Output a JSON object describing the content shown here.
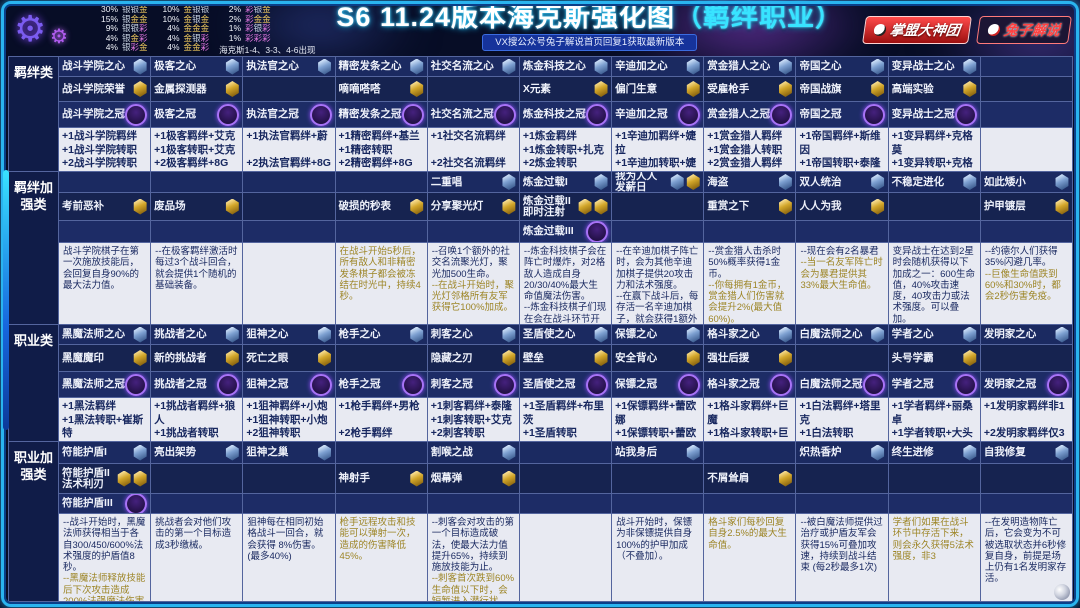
{
  "header": {
    "title": "S6 11.24版本海克斯强化图",
    "title_suffix": "（羁绊职业）",
    "subtitle": "VX搜公众号兔子解说首页回复1获取最新版本",
    "badge_left": "掌盟大神团",
    "badge_right": "兔子解说"
  },
  "legend": {
    "columns": [
      [
        [
          "30%",
          "银银金"
        ],
        [
          "15%",
          "银金金"
        ],
        [
          "9%",
          "银银彩"
        ],
        [
          "4%",
          "银金彩"
        ],
        [
          "4%",
          "银彩金"
        ]
      ],
      [
        [
          "10%",
          "金银银"
        ],
        [
          "10%",
          "金银金"
        ],
        [
          "4%",
          "金金金"
        ],
        [
          "4%",
          "金银彩"
        ],
        [
          "4%",
          "金金彩"
        ]
      ],
      [
        [
          "2%",
          "彩银金"
        ],
        [
          "2%",
          "彩金金"
        ],
        [
          "1%",
          "彩银彩"
        ],
        [
          "1%",
          "彩彩彩"
        ]
      ]
    ],
    "note": "海克斯1-4、3-3、4-6出现",
    "tier_colors": {
      "银": "#ccd7e6",
      "金": "#e9c45c",
      "彩": "#e077e0"
    }
  },
  "grid": {
    "groups": [
      {
        "label": "羁绊类",
        "rows": [
          {
            "kind": "name",
            "tier": "silver",
            "cells": [
              "战斗学院之心",
              "极客之心",
              "执法官之心",
              "精密发条之心",
              "社交名流之心",
              "炼金科技之心",
              "辛迪加之心",
              "赏金猎人之心",
              "帝国之心",
              "变异战士之心",
              null
            ]
          },
          {
            "kind": "name",
            "tier": "gold",
            "cells": [
              "战斗学院荣誉",
              "金属探测器",
              null,
              "嘀嘀嗒嗒",
              null,
              "X元素",
              "偏门生意",
              "受雇枪手",
              "帝国战旗",
              "高端实验",
              null
            ]
          },
          {
            "kind": "name",
            "tier": "prismatic",
            "cells": [
              "战斗学院之冠",
              "极客之冠",
              "执法官之冠",
              "精密发条之冠",
              "社交名流之冠",
              "炼金科技之冠",
              "辛迪加之冠",
              "赏金猎人之冠",
              "帝国之冠",
              "变异战士之冠",
              null
            ]
          },
          {
            "kind": "plus",
            "cells": [
              [
                "+1战斗学院羁绊",
                "+1战斗学院转职",
                "+2战斗学院转职"
              ],
              [
                "+1极客羁绊+艾克",
                "+1极客转职+艾克",
                "+2极客羁绊+8G"
              ],
              [
                "+1执法官羁绊+蔚",
                "",
                "+2执法官羁绊+8G"
              ],
              [
                "+1精密羁绊+基兰",
                "+1精密转职",
                "+2精密羁绊+8G"
              ],
              [
                "+1社交名流羁绊",
                "",
                "+2社交名流羁绊"
              ],
              [
                "+1炼金羁绊",
                "+1炼金转职+扎克",
                "+2炼金转职"
              ],
              [
                "+1辛迪加羁绊+婕拉",
                "+1辛迪加转职+婕拉",
                "+2辛迪加转职"
              ],
              [
                "+1赏金猎人羁绊",
                "+1赏金猎人转职",
                "+2赏金猎人羁绊"
              ],
              [
                "+1帝国羁绊+斯维因",
                "+1帝国转职+泰隆",
                "+2帝国转职"
              ],
              [
                "+1变异羁绊+克格莫",
                "+1变异转职+克格莫",
                "+2变异转职"
              ],
              null
            ]
          }
        ]
      },
      {
        "label": "羁绊加强类",
        "rows": [
          {
            "kind": "name",
            "tier": "silver",
            "cells": [
              null,
              null,
              null,
              null,
              "二重唱",
              "炼金过载I",
              {
                "lines": [
                  "我为人人",
                  "发薪日"
                ],
                "tiers": [
                  "silver",
                  "gold"
                ]
              },
              "海盗",
              "双人统治",
              "不稳定进化",
              "如此矮小"
            ]
          },
          {
            "kind": "name",
            "tier": "gold",
            "cells": [
              "考前恶补",
              "废品场",
              null,
              "破损的秒表",
              "分享聚光灯",
              {
                "lines": [
                  "炼金过载II",
                  "即时注射"
                ],
                "tiers": [
                  "gold",
                  "gold"
                ]
              },
              null,
              "重赏之下",
              "人人为我",
              null,
              "护甲镀层"
            ]
          },
          {
            "kind": "name",
            "tier": "prismatic",
            "cells": [
              null,
              null,
              null,
              null,
              null,
              "炼金过载III",
              null,
              null,
              null,
              null,
              null
            ]
          },
          {
            "kind": "desc",
            "cells": [
              [
                {
                  "t": "战斗学院棋子在第一次施放技能后，会回复自身90%的最大法力值。",
                  "g": false
                }
              ],
              [
                {
                  "t": "--在极客羁绊激活时每过3个战斗回合，就会提供1个随机的基础装备。",
                  "g": false
                }
              ],
              null,
              [
                {
                  "t": "在战斗开始5秒后，所有敌人和非精密发条棋子都会被冻结在时光中，持续4秒。",
                  "g": true
                }
              ],
              [
                {
                  "t": "--召唤1个额外的社交名流聚光灯，聚光加500生命。",
                  "g": false
                },
                {
                  "t": "--在战斗开始时，聚光灯邻格所有友军获得它100%加成。",
                  "g": true
                }
              ],
              [
                {
                  "t": "--炼金科技棋子会在阵亡时爆炸，对2格敌人造成自身20/30/40%最大生命值魔法伤害。",
                  "g": false
                },
                {
                  "t": "--炼金科技棋子们现在会在战斗环节开始时额外触发他们的羁绊加成",
                  "g": false
                }
              ],
              [
                {
                  "t": "--在辛迪加棋子阵亡时，会为其他辛迪加棋子提供20攻击力和法术强度。",
                  "g": false
                },
                {
                  "t": "--在赢下战斗后，每存活一名辛迪加棋子，就会获得1额外金币。",
                  "g": false
                }
              ],
              [
                {
                  "t": "--赏金猎人击杀时50%概率获得1金币。",
                  "g": false
                },
                {
                  "t": "--你每拥有1金币，赏金猎人们伤害就会提升2%(最大值60%)。",
                  "g": true
                }
              ],
              [
                {
                  "t": "--现在会有2名暴君",
                  "g": false
                },
                {
                  "t": "--当一名友军阵亡时会为暴君提供其33%最大生命值。",
                  "g": true
                }
              ],
              [
                {
                  "t": "变异战士在达到2星时会随机获得以下加成之一：600生命值，40%攻击速度，40攻击力或法术强度。可以叠加。",
                  "g": false
                }
              ],
              [
                {
                  "t": "--约德尔人们获得35%闪避几率。",
                  "g": false
                },
                {
                  "t": "--巨像生命值跌到60%和30%时，都会2秒伤害免疫。",
                  "g": true
                }
              ]
            ]
          }
        ]
      },
      {
        "label": "职业类",
        "rows": [
          {
            "kind": "name",
            "tier": "silver",
            "cells": [
              "黑魔法师之心",
              "挑战者之心",
              "狙神之心",
              "枪手之心",
              "刺客之心",
              "圣盾使之心",
              "保镖之心",
              "格斗家之心",
              "白魔法师之心",
              "学者之心",
              "发明家之心"
            ]
          },
          {
            "kind": "name",
            "tier": "gold",
            "cells": [
              "黑魔魔印",
              "新的挑战者",
              "死亡之眼",
              null,
              "隐藏之刃",
              "壁垒",
              "安全背心",
              "强壮后援",
              null,
              "头号学霸",
              null
            ]
          },
          {
            "kind": "name",
            "tier": "prismatic",
            "cells": [
              "黑魔法师之冠",
              "挑战者之冠",
              "狙神之冠",
              "枪手之冠",
              "刺客之冠",
              "圣盾使之冠",
              "保镖之冠",
              "格斗家之冠",
              "白魔法师之冠",
              "学者之冠",
              "发明家之冠"
            ]
          },
          {
            "kind": "plus",
            "cells": [
              [
                "+1黑法羁绊",
                "+1黑法转职+崔斯特",
                "+2黑法转职"
              ],
              [
                "+1挑战者羁绊+狼人",
                "+1挑战者转职",
                "+2挑战者转职"
              ],
              [
                "+1狙神羁绊+小炮",
                "+1狙神转职+小炮",
                "+2狙神转职"
              ],
              [
                "+1枪手羁绊+男枪",
                "",
                "+2枪手羁绊"
              ],
              [
                "+1刺客羁绊+泰隆",
                "+1刺客转职+艾克",
                "+2刺客转职"
              ],
              [
                "+1圣盾羁绊+布里茨",
                "+1圣盾转职",
                "+2圣盾转职"
              ],
              [
                "+1保镖羁绊+蕾欧娜",
                "+1保镖转职+蕾欧娜",
                "+2保镖转职"
              ],
              [
                "+1格斗家羁绊+巨魔",
                "+1格斗家转职+巨魔",
                "+2格斗家转职"
              ],
              [
                "+1白法羁绊+塔里克",
                "+1白法转职",
                "+2白法羁绊+8G"
              ],
              [
                "+1学者羁绊+丽桑卓",
                "+1学者转职+大头",
                "+2学者羁绊+8G"
              ],
              [
                "+1发明家羁绊非1",
                "",
                "+2发明家羁绊仅3"
              ]
            ]
          }
        ]
      },
      {
        "label": "职业加强类",
        "rows": [
          {
            "kind": "name",
            "tier": "silver",
            "cells": [
              "符能护盾I",
              "亮出架势",
              "狙神之巢",
              null,
              "割喉之战",
              null,
              "站我身后",
              null,
              "炽热香炉",
              "终生进修",
              "自我修复"
            ]
          },
          {
            "kind": "name",
            "tier": "gold",
            "cells": [
              {
                "lines": [
                  "符能护盾II",
                  "法术利刃"
                ],
                "tiers": [
                  "gold",
                  "gold"
                ]
              },
              null,
              null,
              "神射手",
              "烟幕弹",
              null,
              null,
              "不屑耸肩",
              null,
              null,
              null
            ]
          },
          {
            "kind": "name",
            "tier": "prismatic",
            "cells": [
              "符能护盾III",
              null,
              null,
              null,
              null,
              null,
              null,
              null,
              null,
              null,
              null
            ]
          },
          {
            "kind": "desc",
            "cells": [
              [
                {
                  "t": "--战斗开始时，黑魔法师获得相当于各自300/450/600%法术强度的护盾值8秒。",
                  "g": false
                },
                {
                  "t": "--黑魔法师释放技能后下次攻击造成200%法强魔法伤害",
                  "g": true
                }
              ],
              [
                {
                  "t": "挑战者会对他们攻击的第一个目标造成3秒缴械。",
                  "g": false
                }
              ],
              [
                {
                  "t": "狙神每在相同初始格战斗一回合，就会获得 8%伤害。(最多40%)",
                  "g": false
                }
              ],
              [
                {
                  "t": "枪手远程攻击和技能可以弹射一次，造成的伤害降低45%。",
                  "g": true
                }
              ],
              [
                {
                  "t": "--刺客会对攻击的第一个目标造成破法，使最大法力值提升65%，持续到施放技能为止。",
                  "g": false
                },
                {
                  "t": "--刺客首次跌到60%生命值以下时，会短暂进入潜行状态，变为不可选取并移除所有负面。",
                  "g": true
                }
              ],
              null,
              [
                {
                  "t": "战斗开始时，保镖为非保镖提供自身100%的护甲加成（不叠加）。",
                  "g": false
                }
              ],
              [
                {
                  "t": "格斗家们每秒回复自身2.5%的最大生命值。",
                  "g": true
                }
              ],
              [
                {
                  "t": "--被白魔法师提供过治疗或护盾友军会获得15%可叠加攻速，持续到战斗结束 (每2秒最多1次)",
                  "g": false
                }
              ],
              [
                {
                  "t": "学者们如果在战斗环节中存活下来，则会永久获得5法术强度，非3",
                  "g": true
                }
              ],
              [
                {
                  "t": "--在发明造物阵亡后，它会变为不可被选取状态并6秒修复自身，前提是场上仍有1名发明家存活。",
                  "g": false
                }
              ]
            ]
          }
        ]
      }
    ]
  }
}
